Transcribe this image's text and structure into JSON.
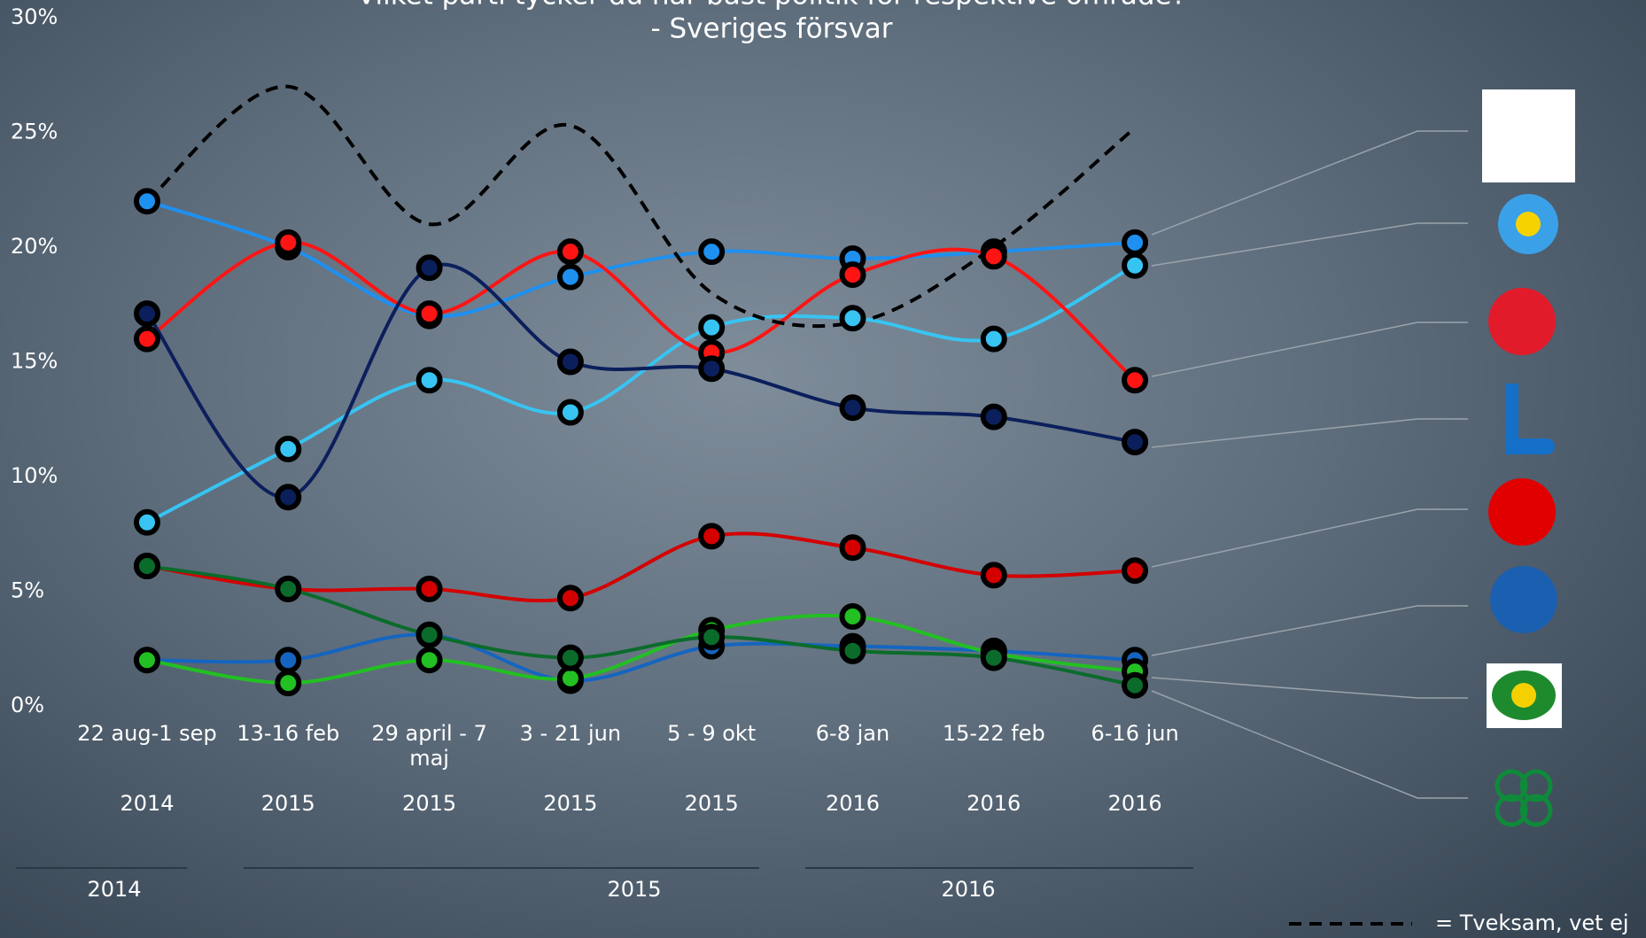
{
  "chart_data": {
    "type": "line",
    "title": "Vilket parti tycker du har bäst politik för respektive område?",
    "subtitle": "-  Sveriges försvar",
    "categories": [
      "22 aug-1 sep",
      "13-16 feb",
      "29 april - 7 maj",
      "3 - 21 jun",
      "5 - 9 okt",
      "6-8 jan",
      "15-22 feb",
      "6-16 jun"
    ],
    "years": [
      "2014",
      "2015",
      "2015",
      "2015",
      "2015",
      "2016",
      "2016",
      "2016"
    ],
    "year_groups": [
      "2014",
      "2015",
      "2016"
    ],
    "ylim": [
      0,
      30
    ],
    "yticks": [
      {
        "value": 0,
        "label": "0%"
      },
      {
        "value": 5,
        "label": "5%"
      },
      {
        "value": 10,
        "label": "10%"
      },
      {
        "value": 15,
        "label": "15%"
      },
      {
        "value": 20,
        "label": "20%"
      },
      {
        "value": 25,
        "label": "25%"
      },
      {
        "value": 30,
        "label": "30%"
      }
    ],
    "series": [
      {
        "color": "#1e90f0",
        "values": [
          22,
          20,
          17,
          18.7,
          19.8,
          19.5,
          19.8,
          20.2
        ]
      },
      {
        "color": "#38c4f2",
        "values": [
          8,
          11.2,
          14.2,
          12.8,
          16.5,
          16.9,
          16,
          19.2
        ]
      },
      {
        "color": "#ff1414",
        "values": [
          16,
          20.2,
          17.1,
          19.8,
          15.4,
          18.8,
          19.6,
          14.2
        ]
      },
      {
        "color": "#0b1f5c",
        "values": [
          17.1,
          9.1,
          19.1,
          15,
          14.7,
          13,
          12.6,
          11.5
        ]
      },
      {
        "color": "#d40000",
        "values": [
          6.1,
          5.1,
          5.1,
          4.7,
          7.4,
          6.9,
          5.7,
          5.9
        ]
      },
      {
        "color": "#1565c0",
        "values": [
          2,
          2,
          3.1,
          1.1,
          2.6,
          2.6,
          2.4,
          2
        ]
      },
      {
        "color": "#22c022",
        "values": [
          2,
          1,
          2,
          1.2,
          3.3,
          3.9,
          2.3,
          1.5
        ]
      },
      {
        "color": "#0b6b2b",
        "values": [
          6.1,
          5.1,
          3.1,
          2.1,
          3,
          2.4,
          2.1,
          0.9
        ]
      },
      {
        "name": "= Tveksam, vet ej",
        "color": "#000000",
        "dashed": true,
        "markers": false,
        "values": [
          22,
          27,
          21,
          25.3,
          18,
          16.7,
          20,
          25.2
        ]
      }
    ]
  }
}
